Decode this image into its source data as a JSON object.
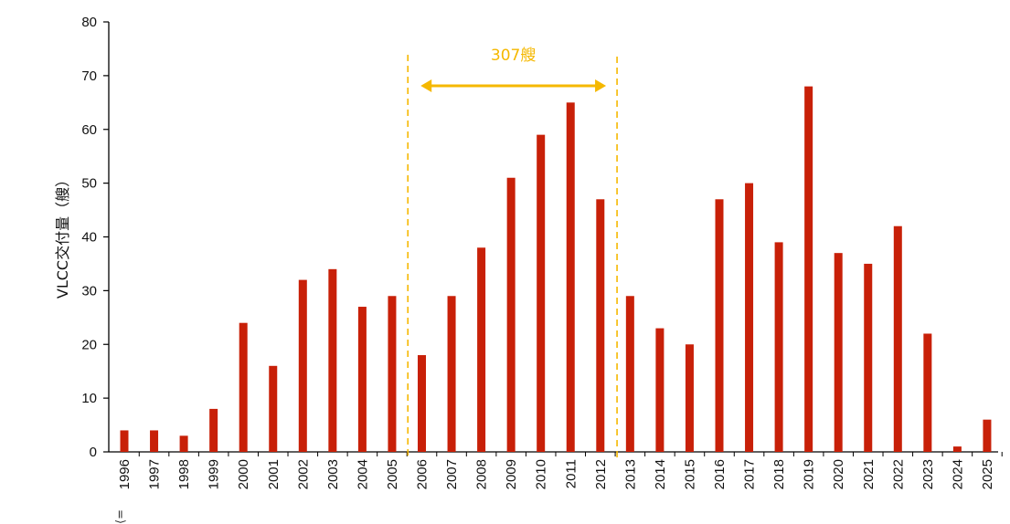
{
  "chart_data": {
    "type": "bar",
    "title": "",
    "xlabel": "",
    "ylabel": "VLCC交付量（艘）",
    "ylim": [
      0,
      80
    ],
    "yticks": [
      0,
      10,
      20,
      30,
      40,
      50,
      60,
      70,
      80
    ],
    "grid": false,
    "categories": [
      "1996",
      "1997",
      "1998",
      "1999",
      "2000",
      "2001",
      "2002",
      "2003",
      "2004",
      "2005",
      "2006",
      "2007",
      "2008",
      "2009",
      "2010",
      "2011",
      "2012",
      "2013",
      "2014",
      "2015",
      "2016",
      "2017",
      "2018",
      "2019",
      "2020",
      "2021",
      "2022",
      "2023",
      "2024",
      "2025"
    ],
    "values": [
      4,
      4,
      3,
      8,
      24,
      16,
      32,
      34,
      27,
      29,
      18,
      29,
      38,
      51,
      59,
      65,
      47,
      29,
      23,
      20,
      47,
      50,
      39,
      68,
      37,
      35,
      42,
      22,
      1,
      6
    ],
    "bar_color": "#c82008",
    "annotation": {
      "label": "307艘",
      "from_category": "2006",
      "to_category": "2012",
      "color": "#f5b800"
    },
    "footnote_glyph": "⟨="
  }
}
